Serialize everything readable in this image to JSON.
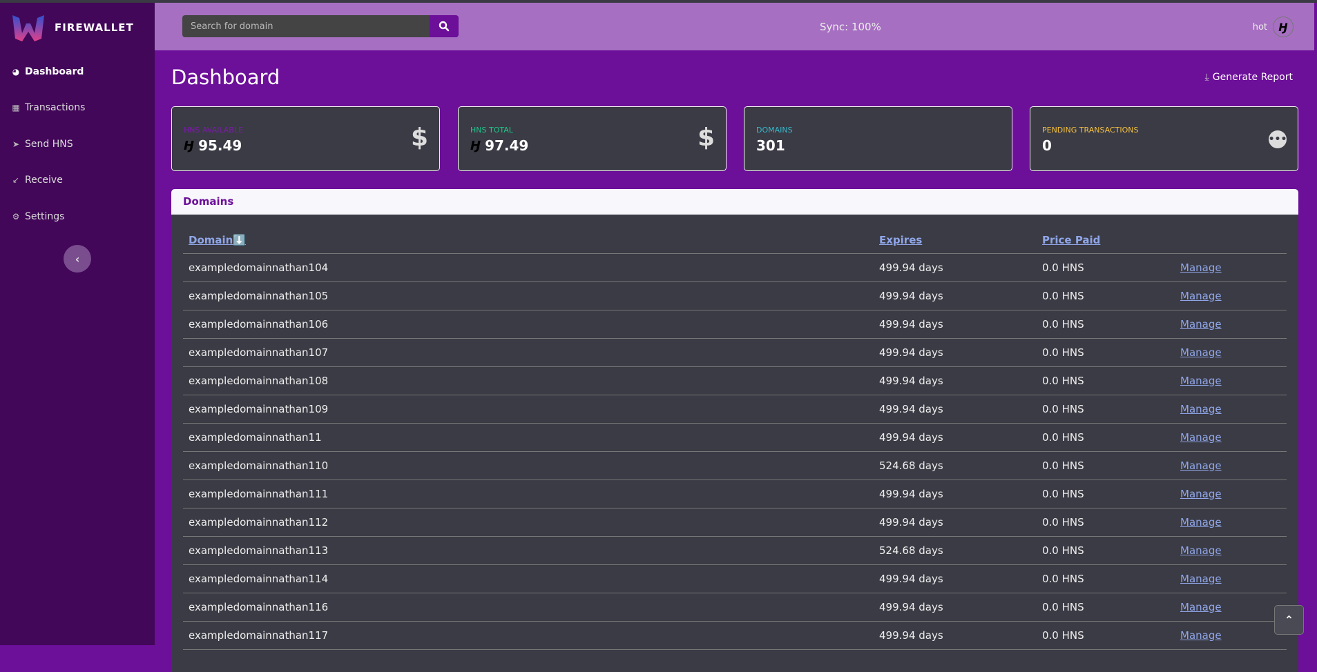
{
  "brand": "FIREWALLET",
  "sidebar": {
    "items": [
      {
        "label": "Dashboard",
        "icon": "gauge-icon"
      },
      {
        "label": "Transactions",
        "icon": "table-icon"
      },
      {
        "label": "Send HNS",
        "icon": "send-icon"
      },
      {
        "label": "Receive",
        "icon": "receive-icon"
      },
      {
        "label": "Settings",
        "icon": "gear-icon"
      }
    ]
  },
  "topbar": {
    "search_placeholder": "Search for domain",
    "sync": "Sync: 100%",
    "user": "hot"
  },
  "page": {
    "title": "Dashboard",
    "report": "Generate Report"
  },
  "cards": [
    {
      "label": "HNS Available",
      "value": "95.49",
      "color": "#7a1ca8"
    },
    {
      "label": "HNS Total",
      "value": "97.49",
      "color": "#1cc88a"
    },
    {
      "label": "Domains",
      "value": "301",
      "color": "#36b9cc"
    },
    {
      "label": "Pending Transactions",
      "value": "0",
      "color": "#f6c23e"
    }
  ],
  "domains": {
    "title": "Domains",
    "headers": {
      "domain": "Domain⬇️",
      "expires": "Expires",
      "price": "Price Paid"
    },
    "manage": "Manage",
    "rows": [
      [
        "exampledomainnathan104",
        "499.94 days",
        "0.0 HNS"
      ],
      [
        "exampledomainnathan105",
        "499.94 days",
        "0.0 HNS"
      ],
      [
        "exampledomainnathan106",
        "499.94 days",
        "0.0 HNS"
      ],
      [
        "exampledomainnathan107",
        "499.94 days",
        "0.0 HNS"
      ],
      [
        "exampledomainnathan108",
        "499.94 days",
        "0.0 HNS"
      ],
      [
        "exampledomainnathan109",
        "499.94 days",
        "0.0 HNS"
      ],
      [
        "exampledomainnathan11",
        "499.94 days",
        "0.0 HNS"
      ],
      [
        "exampledomainnathan110",
        "524.68 days",
        "0.0 HNS"
      ],
      [
        "exampledomainnathan111",
        "499.94 days",
        "0.0 HNS"
      ],
      [
        "exampledomainnathan112",
        "499.94 days",
        "0.0 HNS"
      ],
      [
        "exampledomainnathan113",
        "524.68 days",
        "0.0 HNS"
      ],
      [
        "exampledomainnathan114",
        "499.94 days",
        "0.0 HNS"
      ],
      [
        "exampledomainnathan116",
        "499.94 days",
        "0.0 HNS"
      ],
      [
        "exampledomainnathan117",
        "499.94 days",
        "0.0 HNS"
      ]
    ]
  }
}
